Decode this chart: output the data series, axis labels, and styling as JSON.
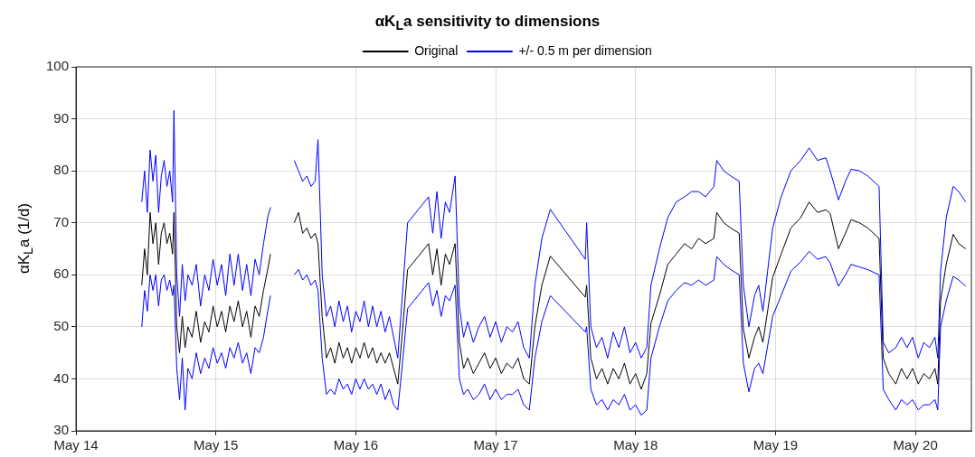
{
  "chart_data": {
    "type": "line",
    "title": "αK$_{L}$a sensitivity to dimensions",
    "ylabel": "αK$_{L}$a (1/d)",
    "x": [
      "--05-14T11:17",
      "--05-14T11:46",
      "--05-14T12:14",
      "--05-14T12:43",
      "--05-14T13:12",
      "--05-14T13:41",
      "--05-14T14:10",
      "--05-14T14:38",
      "--05-14T15:07",
      "--05-14T15:36",
      "--05-14T16:05",
      "--05-14T16:34",
      "--05-14T16:48",
      "--05-14T17:17",
      "--05-14T17:46",
      "--05-14T18:14",
      "--05-14T18:43",
      "--05-14T19:12",
      "--05-14T19:55",
      "--05-14T20:38",
      "--05-14T21:22",
      "--05-14T22:05",
      "--05-14T22:48",
      "--05-14T23:31",
      "--05-15T00:14",
      "--05-15T00:58",
      "--05-15T01:41",
      "--05-15T02:24",
      "--05-15T03:07",
      "--05-15T03:50",
      "--05-15T04:34",
      "--05-15T05:17",
      "--05-15T06:00",
      "--05-15T06:43",
      "--05-15T07:26",
      "--05-15T08:10",
      "--05-15T08:53",
      "--05-15T09:22",
      "--05-15T11:17",
      "--05-15T13:26",
      "--05-15T14:10",
      "--05-15T14:53",
      "--05-15T15:36",
      "--05-15T16:19",
      "--05-15T17:02",
      "--05-15T17:31",
      "--05-15T18:14",
      "--05-15T18:58",
      "--05-15T19:41",
      "--05-15T20:24",
      "--05-15T21:07",
      "--05-15T21:50",
      "--05-15T22:34",
      "--05-15T23:17",
      "--05-16T00:00",
      "--05-16T00:43",
      "--05-16T01:26",
      "--05-16T02:10",
      "--05-16T02:53",
      "--05-16T03:36",
      "--05-16T04:19",
      "--05-16T05:02",
      "--05-16T05:46",
      "--05-16T06:29",
      "--05-16T07:12",
      "--05-16T07:55",
      "--05-16T08:53",
      "--05-16T12:29",
      "--05-16T13:12",
      "--05-16T13:55",
      "--05-16T14:38",
      "--05-16T15:22",
      "--05-16T16:05",
      "--05-16T17:02",
      "--05-16T17:46",
      "--05-16T18:29",
      "--05-16T19:12",
      "--05-16T20:10",
      "--05-16T21:07",
      "--05-16T22:05",
      "--05-16T23:02",
      "--05-17T00:00",
      "--05-17T00:58",
      "--05-17T01:55",
      "--05-17T02:53",
      "--05-17T03:50",
      "--05-17T04:48",
      "--05-17T05:46",
      "--05-17T06:43",
      "--05-17T07:55",
      "--05-17T09:22",
      "--05-17T15:22",
      "--05-17T15:36",
      "--05-17T16:19",
      "--05-17T17:17",
      "--05-17T18:14",
      "--05-17T19:12",
      "--05-17T20:10",
      "--05-17T21:07",
      "--05-17T22:05",
      "--05-17T23:02",
      "--05-18T00:00",
      "--05-18T00:58",
      "--05-18T01:55",
      "--05-18T02:38",
      "--05-18T04:05",
      "--05-18T05:31",
      "--05-18T06:58",
      "--05-18T08:24",
      "--05-18T09:36",
      "--05-18T10:48",
      "--05-18T12:00",
      "--05-18T13:26",
      "--05-18T13:55",
      "--05-18T15:07",
      "--05-18T16:19",
      "--05-18T17:46",
      "--05-18T18:29",
      "--05-18T19:26",
      "--05-18T20:24",
      "--05-18T21:07",
      "--05-18T21:50",
      "--05-18T23:31",
      "--05-19T00:58",
      "--05-19T02:38",
      "--05-19T04:19",
      "--05-19T05:46",
      "--05-19T07:12",
      "--05-19T08:38",
      "--05-19T09:22",
      "--05-19T10:48",
      "--05-19T12:00",
      "--05-19T12:58",
      "--05-19T14:24",
      "--05-19T15:50",
      "--05-19T17:46",
      "--05-19T18:29",
      "--05-19T19:26",
      "--05-19T20:38",
      "--05-19T21:36",
      "--05-19T22:34",
      "--05-19T23:31",
      "--05-20T00:29",
      "--05-20T01:26",
      "--05-20T02:24",
      "--05-20T03:21",
      "--05-20T03:50",
      "--05-20T04:19",
      "--05-20T05:17",
      "--05-20T06:29",
      "--05-20T07:26",
      "--05-20T08:38"
    ],
    "series": [
      {
        "name": "Original",
        "color": "#000000",
        "values": [
          58,
          65,
          60,
          72,
          66,
          70,
          62,
          68,
          70,
          66,
          68,
          64,
          72,
          50,
          45,
          52,
          46,
          50,
          48,
          53,
          47,
          51,
          49,
          54,
          50,
          53,
          49,
          54,
          51,
          55,
          50,
          53,
          48,
          54,
          52,
          57,
          61,
          64,
          null,
          70,
          72,
          68,
          69,
          67,
          68,
          66,
          52,
          44,
          46,
          43,
          47,
          44,
          46,
          43,
          46,
          44,
          47,
          44,
          46,
          43,
          45,
          43,
          45,
          42,
          39,
          48,
          61,
          66,
          60,
          65,
          58,
          64,
          62,
          66,
          47,
          42,
          44,
          41,
          43,
          45,
          42,
          44,
          41,
          43,
          42,
          44,
          40,
          39,
          50,
          58,
          63.6,
          55.7,
          58,
          44,
          40,
          42,
          39,
          42,
          40,
          43,
          39,
          41,
          38,
          41,
          50.7,
          56,
          62,
          64,
          66,
          65,
          67,
          66,
          67,
          72,
          70,
          69,
          68,
          49.6,
          44,
          48,
          50,
          47,
          59.5,
          64,
          69,
          71,
          74,
          72,
          72.5,
          71.8,
          65,
          68,
          70.6,
          70,
          69,
          67,
          44,
          41,
          39,
          42,
          40,
          42,
          39,
          41,
          40,
          42,
          39,
          55,
          62,
          67.8,
          66,
          65
        ]
      },
      {
        "name": "+/- 0.5 m per dimension",
        "color": "#0000ff",
        "values": [
          74,
          80,
          72,
          84,
          78,
          83,
          72,
          79,
          82,
          77,
          80,
          74,
          91.6,
          60,
          52,
          62,
          55,
          60,
          58,
          62,
          54,
          60,
          57,
          63,
          58,
          62,
          56,
          64,
          58,
          64,
          57,
          62,
          56,
          63,
          60,
          66,
          71,
          73,
          null,
          82,
          80,
          78,
          79,
          77,
          78,
          86,
          60,
          52,
          54,
          50,
          55,
          51,
          54,
          49,
          53,
          51,
          55,
          50,
          54,
          50,
          53,
          49,
          52,
          48,
          44,
          55,
          70,
          75,
          68,
          76,
          67,
          74,
          72,
          79,
          54,
          48,
          51,
          47,
          50,
          52,
          48,
          51,
          47,
          50,
          49,
          51,
          46,
          44,
          58,
          67,
          72.6,
          63,
          70,
          50,
          46,
          48,
          44,
          49,
          46,
          50,
          45,
          47,
          44,
          46,
          58,
          65,
          71,
          74,
          75,
          76,
          76,
          75,
          77,
          82,
          80,
          79,
          78,
          58,
          50,
          56,
          58,
          53,
          69,
          75,
          80,
          82,
          84.4,
          82,
          82.5,
          80,
          74.4,
          78,
          80.3,
          80,
          79,
          77,
          47,
          45,
          46,
          48,
          46,
          48,
          44,
          47,
          46,
          48,
          44,
          60.7,
          71,
          77,
          76,
          74
        ]
      },
      {
        "color": "#0000ff",
        "values": [
          50,
          57,
          53,
          60,
          57,
          60,
          54,
          59,
          60,
          57,
          59,
          56,
          58,
          42,
          36,
          44,
          34,
          42,
          40,
          45,
          41,
          44,
          42,
          46,
          43,
          45,
          42,
          46,
          44,
          47,
          43,
          45,
          41,
          46,
          45,
          48,
          53,
          56,
          null,
          60,
          61,
          59,
          60,
          58,
          59,
          57,
          44,
          37,
          38,
          37,
          40,
          38,
          39,
          37,
          40,
          38,
          40,
          38,
          39,
          37,
          39,
          36,
          38,
          35,
          34,
          42,
          53.5,
          58.5,
          54,
          57,
          52,
          56,
          55,
          58,
          40,
          37,
          38,
          36,
          37,
          39,
          36,
          38,
          36,
          37,
          37,
          38,
          35,
          34,
          44,
          51,
          56,
          49,
          50,
          38,
          35,
          36,
          34,
          36,
          35,
          37,
          34,
          35,
          33,
          34,
          44,
          50,
          55,
          57,
          58.5,
          58,
          59,
          58,
          59,
          63.5,
          62,
          61,
          60,
          43,
          37.5,
          42,
          43,
          41,
          52,
          56,
          60.7,
          62.5,
          64.5,
          63,
          63.5,
          62.3,
          57.8,
          60,
          62,
          61.5,
          61,
          60,
          38,
          36,
          34,
          36,
          35,
          36,
          34,
          35,
          35,
          36,
          34,
          50,
          55,
          59.7,
          59,
          57.8
        ]
      }
    ],
    "xlim": [
      "--05-14",
      "--05-20T09:36"
    ],
    "xticks": [
      {
        "value": "--05-14",
        "label": "May 14"
      },
      {
        "value": "--05-15",
        "label": "May 15"
      },
      {
        "value": "--05-16",
        "label": "May 16"
      },
      {
        "value": "--05-17",
        "label": "May 17"
      },
      {
        "value": "--05-18",
        "label": "May 18"
      },
      {
        "value": "--05-19",
        "label": "May 19"
      },
      {
        "value": "--05-20",
        "label": "May 20"
      }
    ],
    "ylim": [
      30,
      100
    ],
    "yticks": [
      30,
      40,
      50,
      60,
      70,
      80,
      90,
      100
    ],
    "grid": true,
    "legend": "top",
    "marker": "none",
    "line_style": "solid"
  }
}
